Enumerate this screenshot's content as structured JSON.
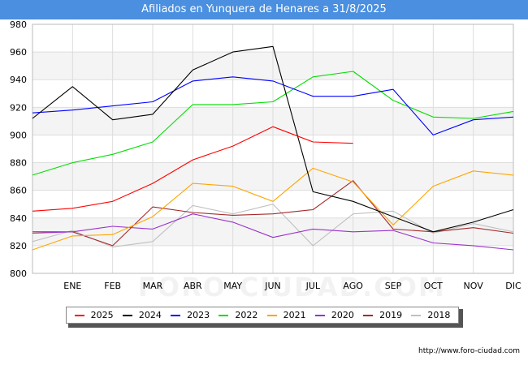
{
  "chart_data": {
    "type": "line",
    "title": "Afiliados en Yunquera de Henares a 31/8/2025",
    "categories": [
      "",
      "ENE",
      "FEB",
      "MAR",
      "ABR",
      "MAY",
      "JUN",
      "JUL",
      "AGO",
      "SEP",
      "OCT",
      "NOV",
      "DIC"
    ],
    "ylim": [
      800,
      980
    ],
    "yticks": [
      800,
      820,
      840,
      860,
      880,
      900,
      920,
      940,
      960,
      980
    ],
    "series": [
      {
        "name": "2025",
        "color": "#ff0000",
        "values": [
          845,
          847,
          852,
          865,
          882,
          892,
          906,
          895,
          894,
          null,
          null,
          null,
          null
        ]
      },
      {
        "name": "2024",
        "color": "#000000",
        "values": [
          912,
          935,
          911,
          915,
          947,
          960,
          964,
          859,
          852,
          841,
          830,
          837,
          846
        ]
      },
      {
        "name": "2023",
        "color": "#0000ff",
        "values": [
          916,
          918,
          921,
          924,
          939,
          942,
          939,
          928,
          928,
          933,
          900,
          911,
          913
        ]
      },
      {
        "name": "2022",
        "color": "#00dd00",
        "values": [
          871,
          880,
          886,
          895,
          922,
          922,
          924,
          942,
          946,
          925,
          913,
          912,
          917
        ]
      },
      {
        "name": "2021",
        "color": "#ffa500",
        "values": [
          817,
          827,
          828,
          841,
          865,
          863,
          852,
          876,
          866,
          835,
          863,
          874,
          871
        ]
      },
      {
        "name": "2020",
        "color": "#9932cc",
        "values": [
          829,
          830,
          834,
          832,
          843,
          837,
          826,
          832,
          830,
          831,
          822,
          820,
          817
        ]
      },
      {
        "name": "2019",
        "color": "#a52a2a",
        "values": [
          830,
          830,
          820,
          848,
          844,
          842,
          843,
          846,
          867,
          832,
          830,
          833,
          829
        ]
      },
      {
        "name": "2018",
        "color": "#c0c0c0",
        "values": [
          823,
          831,
          819,
          823,
          849,
          843,
          850,
          820,
          843,
          845,
          829,
          836,
          830
        ]
      }
    ]
  },
  "source": "http://www.foro-ciudad.com",
  "watermark": "FORO-CIUDAD.COM"
}
